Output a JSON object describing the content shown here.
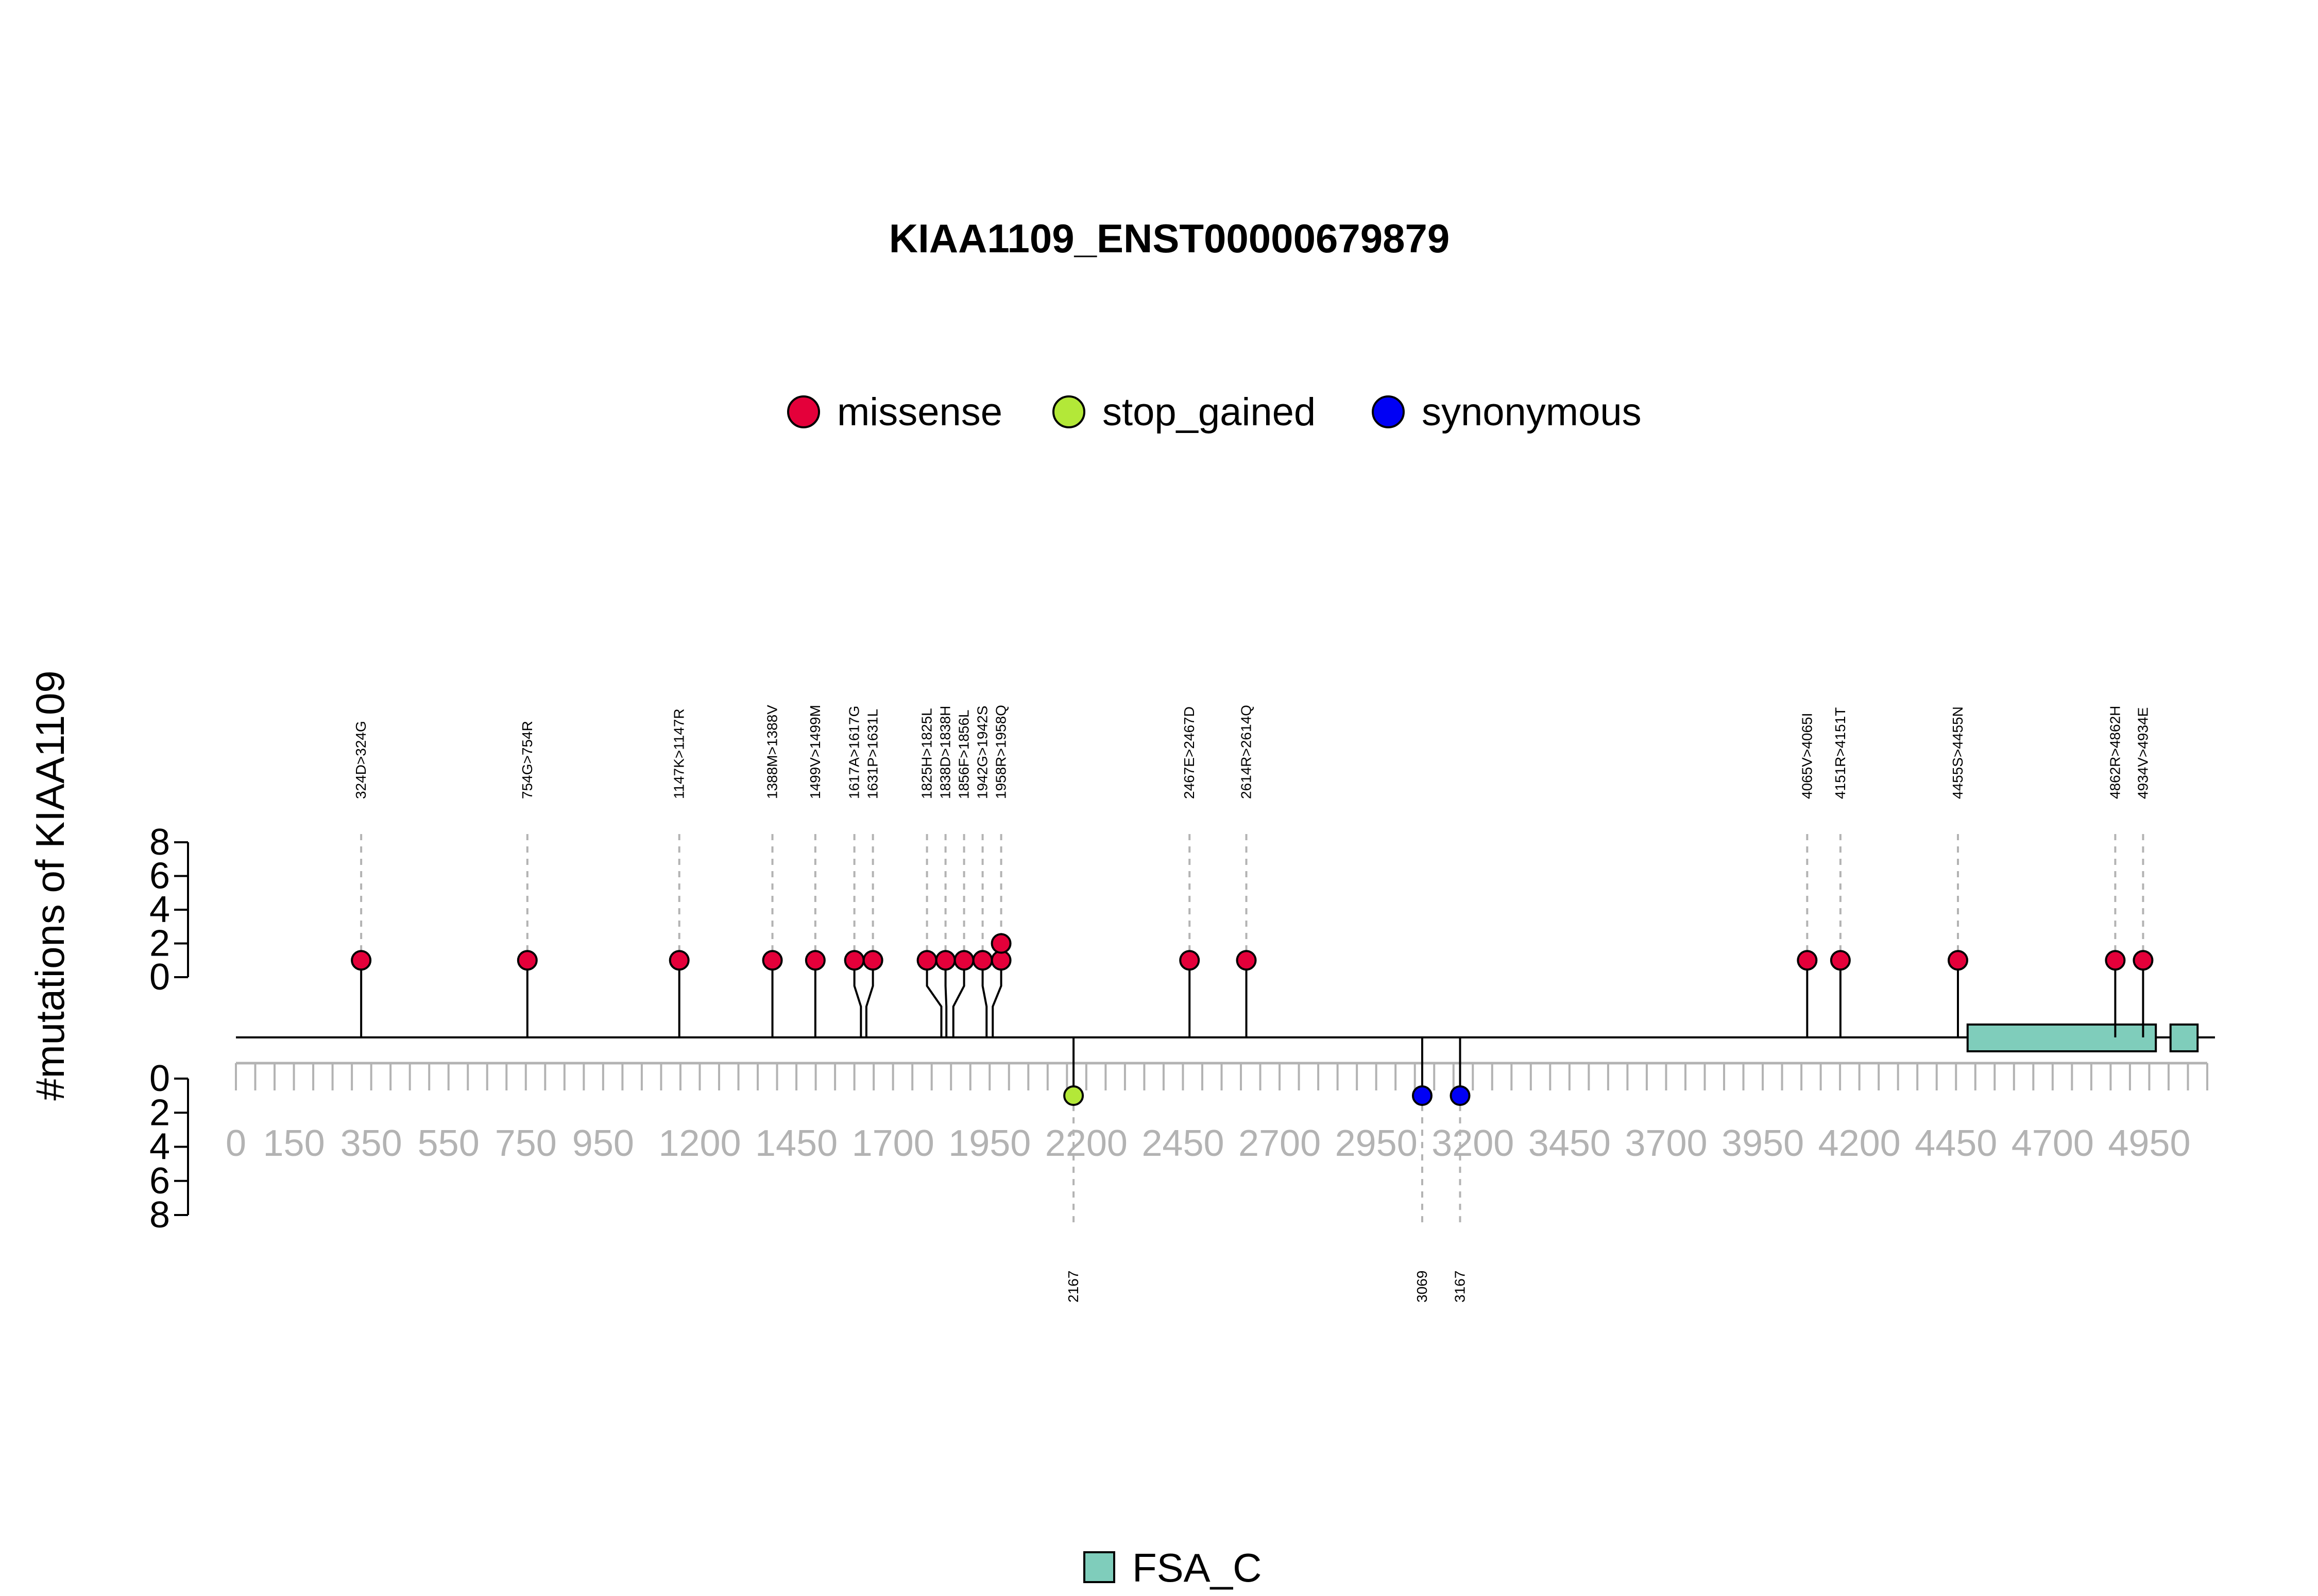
{
  "chart_data": {
    "type": "lollipop",
    "title": "KIAA1109_ENST00000679879",
    "ylabel": "#mutations of KIAA1109",
    "ylim": [
      0,
      8
    ],
    "y_ticks": [
      "0",
      "2",
      "4",
      "6",
      "8"
    ],
    "xlim": [
      0,
      5100
    ],
    "x_tick_labels": [
      {
        "value": 0,
        "label": "0"
      },
      {
        "value": 150,
        "label": "150"
      },
      {
        "value": 350,
        "label": "350"
      },
      {
        "value": 550,
        "label": "550"
      },
      {
        "value": 750,
        "label": "750"
      },
      {
        "value": 950,
        "label": "950"
      },
      {
        "value": 1200,
        "label": "1200"
      },
      {
        "value": 1450,
        "label": "1450"
      },
      {
        "value": 1700,
        "label": "1700"
      },
      {
        "value": 1950,
        "label": "1950"
      },
      {
        "value": 2200,
        "label": "2200"
      },
      {
        "value": 2450,
        "label": "2450"
      },
      {
        "value": 2700,
        "label": "2700"
      },
      {
        "value": 2950,
        "label": "2950"
      },
      {
        "value": 3200,
        "label": "3200"
      },
      {
        "value": 3450,
        "label": "3450"
      },
      {
        "value": 3700,
        "label": "3700"
      },
      {
        "value": 3950,
        "label": "3950"
      },
      {
        "value": 4200,
        "label": "4200"
      },
      {
        "value": 4450,
        "label": "4450"
      },
      {
        "value": 4700,
        "label": "4700"
      },
      {
        "value": 4950,
        "label": "4950"
      }
    ],
    "legend": [
      {
        "name": "missense",
        "color": "#e4003a"
      },
      {
        "name": "stop_gained",
        "color": "#b3e838"
      },
      {
        "name": "synonymous",
        "color": "#0000f5"
      }
    ],
    "upper_mutations": [
      {
        "pos": 324,
        "label": "324D>324G",
        "count": 1,
        "type": "missense"
      },
      {
        "pos": 754,
        "label": "754G>754R",
        "count": 1,
        "type": "missense"
      },
      {
        "pos": 1147,
        "label": "1147K>1147R",
        "count": 1,
        "type": "missense"
      },
      {
        "pos": 1388,
        "label": "1388M>1388V",
        "count": 1,
        "type": "missense"
      },
      {
        "pos": 1499,
        "label": "1499V>1499M",
        "count": 1,
        "type": "missense"
      },
      {
        "pos": 1617,
        "label": "1617A>1617G",
        "count": 1,
        "type": "missense"
      },
      {
        "pos": 1631,
        "label": "1631P>1631L",
        "count": 1,
        "type": "missense"
      },
      {
        "pos": 1825,
        "label": "1825H>1825L",
        "count": 1,
        "type": "missense"
      },
      {
        "pos": 1838,
        "label": "1838D>1838H",
        "count": 1,
        "type": "missense"
      },
      {
        "pos": 1856,
        "label": "1856F>1856L",
        "count": 1,
        "type": "missense"
      },
      {
        "pos": 1942,
        "label": "1942G>1942S",
        "count": 1,
        "type": "missense"
      },
      {
        "pos": 1958,
        "label": "1958R>1958Q",
        "count": 2,
        "type": "missense"
      },
      {
        "pos": 2467,
        "label": "2467E>2467D",
        "count": 1,
        "type": "missense"
      },
      {
        "pos": 2614,
        "label": "2614R>2614Q",
        "count": 1,
        "type": "missense"
      },
      {
        "pos": 4065,
        "label": "4065V>4065I",
        "count": 1,
        "type": "missense"
      },
      {
        "pos": 4151,
        "label": "4151R>4151T",
        "count": 1,
        "type": "missense"
      },
      {
        "pos": 4455,
        "label": "4455S>4455N",
        "count": 1,
        "type": "missense"
      },
      {
        "pos": 4862,
        "label": "4862R>4862H",
        "count": 1,
        "type": "missense"
      },
      {
        "pos": 4934,
        "label": "4934V>4934E",
        "count": 1,
        "type": "missense"
      }
    ],
    "lower_mutations": [
      {
        "pos": 2167,
        "label": "2167",
        "count": 1,
        "type": "stop_gained"
      },
      {
        "pos": 3069,
        "label": "3069",
        "count": 1,
        "type": "synonymous"
      },
      {
        "pos": 3167,
        "label": "3167",
        "count": 1,
        "type": "synonymous"
      }
    ],
    "domains": [
      {
        "name": "FSA_C",
        "start": 4480,
        "end": 4967,
        "color": "#7fcdbb"
      },
      {
        "name": "FSA_C",
        "start": 5005,
        "end": 5075,
        "color": "#7fcdbb"
      }
    ],
    "domain_legend": [
      {
        "name": "FSA_C",
        "color": "#7fcdbb"
      }
    ]
  }
}
